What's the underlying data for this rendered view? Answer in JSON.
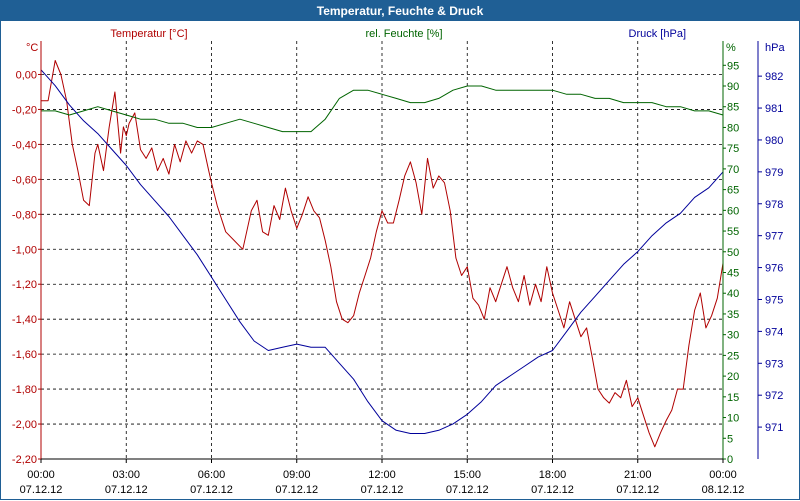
{
  "title": "Temperatur, Feuchte & Druck",
  "colors": {
    "temperature": "#b00000",
    "humidity": "#006400",
    "pressure": "#00009a",
    "title_bar": "#1f5f95"
  },
  "chart_data": {
    "type": "line",
    "title": "Temperatur, Feuchte & Druck",
    "grid": true,
    "x_ticks": [
      {
        "time": "00:00",
        "date": "07.12.12"
      },
      {
        "time": "03:00",
        "date": "07.12.12"
      },
      {
        "time": "06:00",
        "date": "07.12.12"
      },
      {
        "time": "09:00",
        "date": "07.12.12"
      },
      {
        "time": "12:00",
        "date": "07.12.12"
      },
      {
        "time": "15:00",
        "date": "07.12.12"
      },
      {
        "time": "18:00",
        "date": "07.12.12"
      },
      {
        "time": "21:00",
        "date": "07.12.12"
      },
      {
        "time": "00:00",
        "date": "08.12.12"
      }
    ],
    "axes": {
      "temperature": {
        "label": "Temperatur [°C]",
        "unit": "°C",
        "ylim": [
          -2.2,
          0.1
        ],
        "ticks": [
          "0,00",
          "-0,20",
          "-0,40",
          "-0,60",
          "-0,80",
          "-1,00",
          "-1,20",
          "-1,40",
          "-1,60",
          "-1,80",
          "-2,00",
          "-2,20"
        ]
      },
      "humidity": {
        "label": "rel. Feuchte [%]",
        "unit": "%",
        "ylim": [
          0,
          97
        ],
        "ticks": [
          "95",
          "90",
          "85",
          "80",
          "75",
          "70",
          "65",
          "60",
          "55",
          "50",
          "45",
          "40",
          "35",
          "30",
          "25",
          "20",
          "15",
          "10",
          "5",
          "0"
        ]
      },
      "pressure": {
        "label": "Druck [hPa]",
        "unit": "hPa",
        "ylim": [
          970.0,
          982.6
        ],
        "ticks": [
          "982",
          "981",
          "980",
          "979",
          "978",
          "977",
          "976",
          "975",
          "974",
          "973",
          "972",
          "971"
        ]
      }
    },
    "series": [
      {
        "name": "Temperatur [°C]",
        "axis": "temperature",
        "color": "#b00000",
        "x": [
          0,
          0.25,
          0.5,
          0.7,
          0.9,
          1.1,
          1.3,
          1.5,
          1.7,
          1.9,
          2.0,
          2.2,
          2.4,
          2.6,
          2.8,
          2.9,
          3.0,
          3.1,
          3.3,
          3.5,
          3.7,
          3.9,
          4.1,
          4.3,
          4.5,
          4.7,
          4.9,
          5.1,
          5.3,
          5.5,
          5.7,
          5.9,
          6.0,
          6.2,
          6.5,
          6.8,
          7.1,
          7.4,
          7.6,
          7.8,
          8.0,
          8.2,
          8.4,
          8.6,
          8.8,
          9.0,
          9.2,
          9.4,
          9.6,
          9.8,
          10.0,
          10.2,
          10.4,
          10.6,
          10.8,
          11.0,
          11.2,
          11.4,
          11.6,
          11.8,
          12.0,
          12.2,
          12.4,
          12.6,
          12.8,
          13.0,
          13.2,
          13.4,
          13.6,
          13.8,
          14.0,
          14.2,
          14.4,
          14.6,
          14.8,
          15.0,
          15.2,
          15.4,
          15.6,
          15.8,
          16.0,
          16.2,
          16.4,
          16.6,
          16.8,
          17.0,
          17.2,
          17.4,
          17.6,
          17.8,
          18.0,
          18.2,
          18.4,
          18.6,
          18.8,
          19.0,
          19.2,
          19.4,
          19.6,
          19.8,
          20.0,
          20.2,
          20.4,
          20.6,
          20.8,
          21.0,
          21.2,
          21.4,
          21.6,
          21.8,
          22.0,
          22.2,
          22.4,
          22.6,
          22.8,
          23.0,
          23.2,
          23.4,
          23.6,
          23.8,
          24.0
        ],
        "values": [
          -0.15,
          -0.15,
          0.08,
          0.0,
          -0.15,
          -0.4,
          -0.55,
          -0.72,
          -0.75,
          -0.45,
          -0.4,
          -0.55,
          -0.3,
          -0.1,
          -0.45,
          -0.3,
          -0.35,
          -0.28,
          -0.22,
          -0.43,
          -0.48,
          -0.42,
          -0.55,
          -0.48,
          -0.57,
          -0.4,
          -0.5,
          -0.38,
          -0.45,
          -0.38,
          -0.4,
          -0.55,
          -0.62,
          -0.75,
          -0.9,
          -0.95,
          -1.0,
          -0.78,
          -0.72,
          -0.9,
          -0.92,
          -0.75,
          -0.83,
          -0.65,
          -0.78,
          -0.88,
          -0.8,
          -0.7,
          -0.78,
          -0.82,
          -0.95,
          -1.1,
          -1.3,
          -1.4,
          -1.42,
          -1.38,
          -1.25,
          -1.15,
          -1.05,
          -0.9,
          -0.78,
          -0.85,
          -0.85,
          -0.72,
          -0.58,
          -0.5,
          -0.62,
          -0.8,
          -0.48,
          -0.65,
          -0.58,
          -0.62,
          -0.78,
          -1.05,
          -1.15,
          -1.1,
          -1.28,
          -1.32,
          -1.4,
          -1.22,
          -1.3,
          -1.2,
          -1.1,
          -1.22,
          -1.3,
          -1.15,
          -1.32,
          -1.2,
          -1.3,
          -1.1,
          -1.25,
          -1.35,
          -1.45,
          -1.3,
          -1.4,
          -1.5,
          -1.45,
          -1.62,
          -1.8,
          -1.85,
          -1.88,
          -1.82,
          -1.85,
          -1.75,
          -1.9,
          -1.85,
          -1.95,
          -2.05,
          -2.13,
          -2.05,
          -1.98,
          -1.92,
          -1.8,
          -1.8,
          -1.55,
          -1.35,
          -1.25,
          -1.45,
          -1.38,
          -1.28,
          -1.08
        ]
      },
      {
        "name": "rel. Feuchte [%]",
        "axis": "humidity",
        "color": "#006400",
        "x": [
          0,
          0.5,
          1,
          1.5,
          2,
          2.5,
          3,
          3.5,
          4,
          4.5,
          5,
          5.5,
          6,
          6.5,
          7,
          7.5,
          8,
          8.5,
          9,
          9.5,
          10,
          10.5,
          11,
          11.5,
          12,
          12.5,
          13,
          13.5,
          14,
          14.5,
          15,
          15.5,
          16,
          16.5,
          17,
          17.5,
          18,
          18.5,
          19,
          19.5,
          20,
          20.5,
          21,
          21.5,
          22,
          22.5,
          23,
          23.5,
          24
        ],
        "values": [
          84,
          84,
          83,
          84,
          85,
          84,
          83,
          82,
          82,
          81,
          81,
          80,
          80,
          81,
          82,
          81,
          80,
          79,
          79,
          79,
          82,
          87,
          89,
          89,
          88,
          87,
          86,
          86,
          87,
          89,
          90,
          90,
          89,
          89,
          89,
          89,
          89,
          88,
          88,
          87,
          87,
          86,
          86,
          86,
          85,
          85,
          84,
          84,
          83
        ]
      },
      {
        "name": "Druck [hPa]",
        "axis": "pressure",
        "color": "#00009a",
        "x": [
          0,
          0.5,
          1,
          1.5,
          2,
          2.5,
          3,
          3.5,
          4,
          4.5,
          5,
          5.5,
          6,
          6.5,
          7,
          7.5,
          8,
          8.5,
          9,
          9.5,
          10,
          10.5,
          11,
          11.5,
          12,
          12.5,
          13,
          13.5,
          14,
          14.5,
          15,
          15.5,
          16,
          16.5,
          17,
          17.5,
          18,
          18.5,
          19,
          19.5,
          20,
          20.5,
          21,
          21.5,
          22,
          22.5,
          23,
          23.5,
          24
        ],
        "values": [
          982.2,
          981.7,
          981.1,
          980.6,
          980.2,
          979.7,
          979.2,
          978.6,
          978.1,
          977.6,
          977.0,
          976.4,
          975.7,
          975.0,
          974.3,
          973.7,
          973.4,
          973.5,
          973.6,
          973.5,
          973.5,
          973.0,
          972.5,
          971.8,
          971.2,
          970.9,
          970.8,
          970.8,
          970.9,
          971.1,
          971.4,
          971.8,
          972.3,
          972.6,
          972.9,
          973.2,
          973.4,
          974.0,
          974.6,
          975.1,
          975.6,
          976.1,
          976.5,
          977.0,
          977.4,
          977.7,
          978.2,
          978.5,
          979.0
        ]
      }
    ]
  }
}
